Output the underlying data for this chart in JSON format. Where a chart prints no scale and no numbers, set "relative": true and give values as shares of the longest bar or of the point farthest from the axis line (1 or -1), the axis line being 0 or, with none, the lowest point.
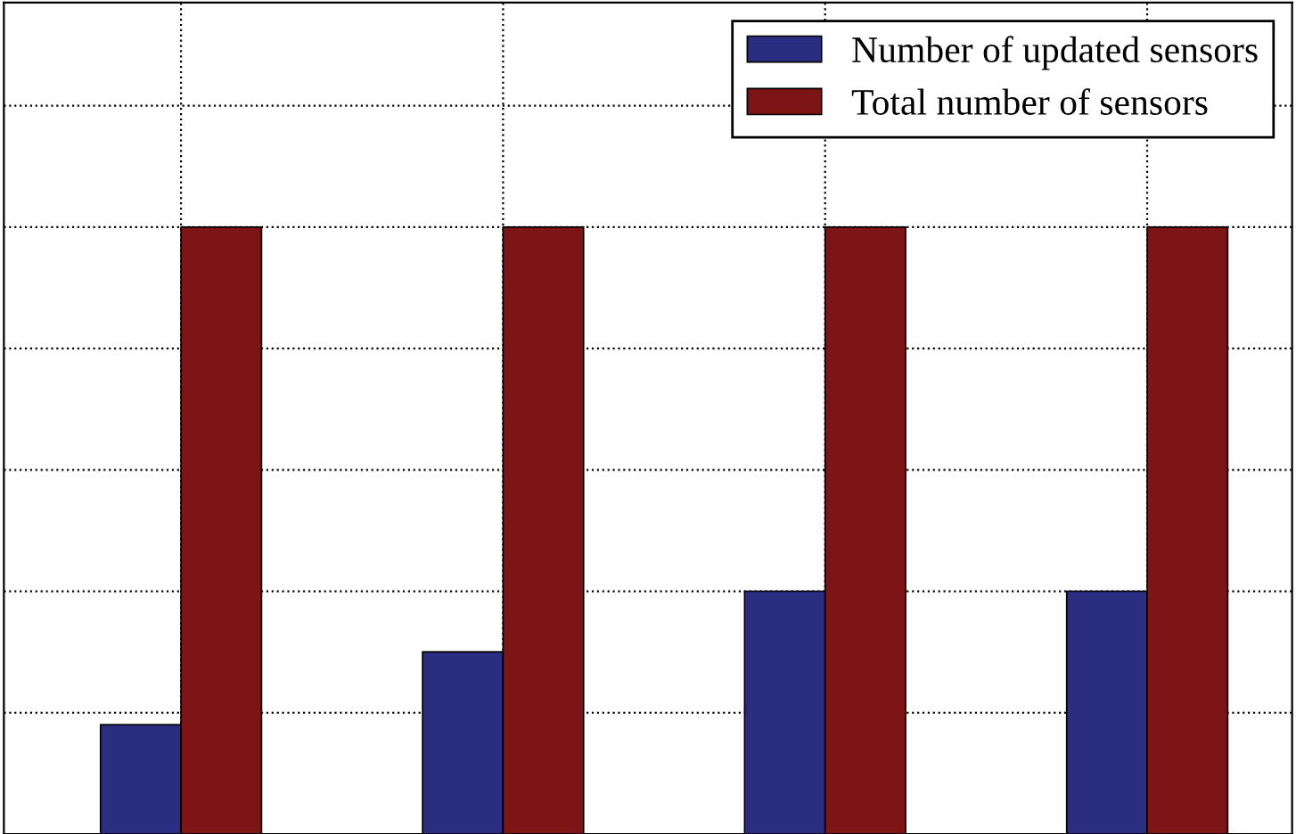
{
  "chart_data": {
    "type": "bar",
    "relative": true,
    "categories": [
      null,
      null,
      null,
      null
    ],
    "series": [
      {
        "name": "Number of updated sensors",
        "color": "#2b2d80",
        "values": [
          0.18,
          0.3,
          0.4,
          0.4
        ]
      },
      {
        "name": "Total number of sensors",
        "color": "#7d1416",
        "values": [
          1,
          1,
          1,
          1
        ]
      }
    ],
    "grid": true,
    "legend": "top right"
  }
}
